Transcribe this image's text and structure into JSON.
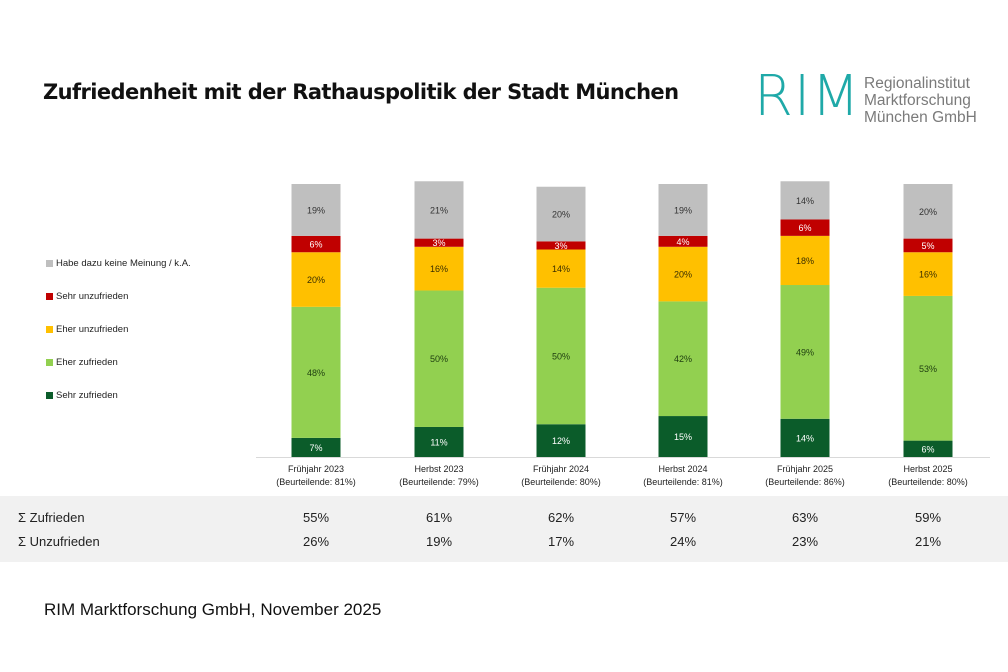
{
  "title": "Zufriedenheit mit der Rathauspolitik der Stadt München",
  "logo": {
    "mark": "RIM",
    "lines": [
      "Regionalinstitut",
      "Marktforschung",
      "München GmbH"
    ],
    "color": "#1fa9a8"
  },
  "legend": [
    {
      "label": "Habe dazu keine Meinung / k.A.",
      "color": "#bfbfbf"
    },
    {
      "label": "Sehr unzufrieden",
      "color": "#c00000"
    },
    {
      "label": "Eher unzufrieden",
      "color": "#ffc000"
    },
    {
      "label": "Eher zufrieden",
      "color": "#92d050"
    },
    {
      "label": "Sehr zufrieden",
      "color": "#0b5c2a"
    }
  ],
  "chart_data": {
    "type": "bar",
    "stacked": true,
    "title": "Zufriedenheit mit der Rathauspolitik der Stadt München",
    "categories": [
      "Frühjahr 2023",
      "Herbst 2023",
      "Frühjahr 2024",
      "Herbst 2024",
      "Frühjahr 2025",
      "Herbst 2025"
    ],
    "category_sublabels": [
      "(Beurteilende: 81%)",
      "(Beurteilende: 79%)",
      "(Beurteilende: 80%)",
      "(Beurteilende: 81%)",
      "(Beurteilende: 86%)",
      "(Beurteilende: 80%)"
    ],
    "unit": "%",
    "ylim": [
      0,
      100
    ],
    "series": [
      {
        "name": "Sehr zufrieden",
        "color": "#0b5c2a",
        "label_color": "#ffffff",
        "values": [
          7,
          11,
          12,
          15,
          14,
          6
        ]
      },
      {
        "name": "Eher zufrieden",
        "color": "#92d050",
        "label_color": "#1e3d10",
        "values": [
          48,
          50,
          50,
          42,
          49,
          53
        ]
      },
      {
        "name": "Eher unzufrieden",
        "color": "#ffc000",
        "label_color": "#3a2e00",
        "values": [
          20,
          16,
          14,
          20,
          18,
          16
        ]
      },
      {
        "name": "Sehr unzufrieden",
        "color": "#c00000",
        "label_color": "#ffffff",
        "values": [
          6,
          3,
          3,
          4,
          6,
          5
        ]
      },
      {
        "name": "Habe dazu keine Meinung / k.A.",
        "color": "#bfbfbf",
        "label_color": "#333333",
        "values": [
          19,
          21,
          20,
          19,
          14,
          20
        ]
      }
    ],
    "legend_position": "left",
    "grid": false
  },
  "summary": {
    "rows": [
      {
        "label": "Σ Zufrieden",
        "values": [
          "55%",
          "61%",
          "62%",
          "57%",
          "63%",
          "59%"
        ]
      },
      {
        "label": "Σ Unzufrieden",
        "values": [
          "26%",
          "19%",
          "17%",
          "24%",
          "23%",
          "21%"
        ]
      }
    ]
  },
  "footer": "RIM Marktforschung GmbH, November 2025"
}
